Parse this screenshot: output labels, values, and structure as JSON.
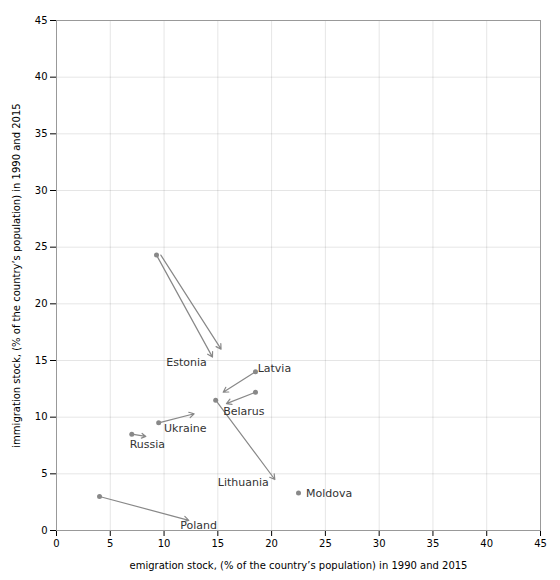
{
  "chart_data": {
    "type": "arrow",
    "xlabel": "emigration stock, (% of the country’s population) in 1990 and 2015",
    "ylabel": "immigration stock, (% of the country’s population) in 1990 and 2015",
    "xlim": [
      0,
      45
    ],
    "ylim": [
      0,
      45
    ],
    "xticks": [
      0,
      5,
      10,
      15,
      20,
      25,
      30,
      35,
      40,
      45
    ],
    "yticks": [
      0,
      5,
      10,
      15,
      20,
      25,
      30,
      35,
      40,
      45
    ],
    "grid": true,
    "color": "#888888",
    "arrows": [
      {
        "x1": 9.7,
        "y1": 24.3,
        "x2": 15.3,
        "y2": 16.0
      },
      {
        "x1": 9.3,
        "y1": 24.3,
        "x2": 14.5,
        "y2": 15.3
      },
      {
        "x1": 18.5,
        "y1": 14.0,
        "x2": 15.5,
        "y2": 12.2
      },
      {
        "x1": 18.5,
        "y1": 12.2,
        "x2": 15.8,
        "y2": 11.2
      },
      {
        "x1": 9.5,
        "y1": 9.5,
        "x2": 12.8,
        "y2": 10.3
      },
      {
        "x1": 7.0,
        "y1": 8.5,
        "x2": 8.3,
        "y2": 8.3
      },
      {
        "x1": 14.8,
        "y1": 11.5,
        "x2": 20.3,
        "y2": 4.5
      },
      {
        "x1": 4.0,
        "y1": 3.0,
        "x2": 12.3,
        "y2": 0.9
      }
    ],
    "points": [
      {
        "x": 9.3,
        "y": 24.3
      },
      {
        "x": 18.5,
        "y": 14.0
      },
      {
        "x": 18.5,
        "y": 12.2
      },
      {
        "x": 9.5,
        "y": 9.5
      },
      {
        "x": 7.0,
        "y": 8.5
      },
      {
        "x": 14.8,
        "y": 11.5
      },
      {
        "x": 22.5,
        "y": 3.3
      },
      {
        "x": 4.0,
        "y": 3.0
      }
    ],
    "annotations": [
      {
        "text": "Estonia",
        "x": 10.2,
        "y": 14.8
      },
      {
        "text": "Latvia",
        "x": 18.7,
        "y": 14.3
      },
      {
        "text": "Belarus",
        "x": 15.5,
        "y": 10.5
      },
      {
        "text": "Ukraine",
        "x": 10.0,
        "y": 9.0
      },
      {
        "text": "Russia",
        "x": 6.8,
        "y": 7.6
      },
      {
        "text": "Lithuania",
        "x": 15.0,
        "y": 4.2
      },
      {
        "text": "Moldova",
        "x": 23.2,
        "y": 3.3
      },
      {
        "text": "Poland",
        "x": 11.5,
        "y": 0.4
      }
    ]
  }
}
